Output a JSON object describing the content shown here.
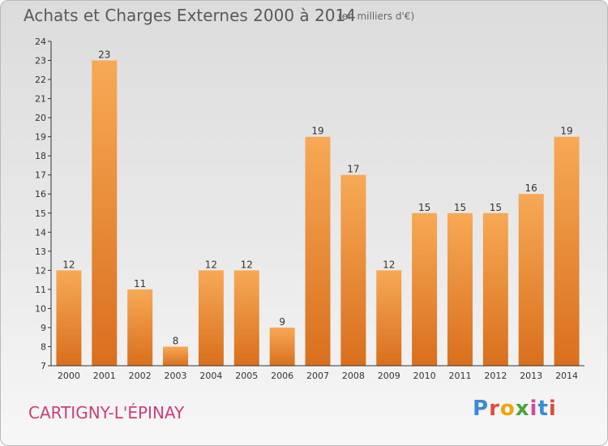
{
  "page": {
    "title": "Achats et Charges Externes 2000 à 2014",
    "subtitle": "(en milliers d'€)",
    "town": "CARTIGNY-L'ÉPINAY",
    "brand": "Proxiti",
    "brand_colors": [
      "#3a8ad6",
      "#e14b3b",
      "#f0a30a",
      "#4aa33b",
      "#d14b9a",
      "#3a8ad6",
      "#e14b3b"
    ]
  },
  "chart_data": {
    "type": "bar",
    "categories": [
      "2000",
      "2001",
      "2002",
      "2003",
      "2004",
      "2005",
      "2006",
      "2007",
      "2008",
      "2009",
      "2010",
      "2011",
      "2012",
      "2013",
      "2014"
    ],
    "values": [
      12,
      23,
      11,
      8,
      12,
      12,
      9,
      19,
      17,
      12,
      15,
      15,
      15,
      16,
      19
    ],
    "ylim": [
      7,
      24
    ],
    "yticks": [
      7,
      8,
      9,
      10,
      11,
      12,
      13,
      14,
      15,
      16,
      17,
      18,
      19,
      20,
      21,
      22,
      23,
      24
    ],
    "bar_color_light": "#f7a955",
    "bar_color_dark": "#d96f1d",
    "grid": false,
    "data_labels": true
  }
}
